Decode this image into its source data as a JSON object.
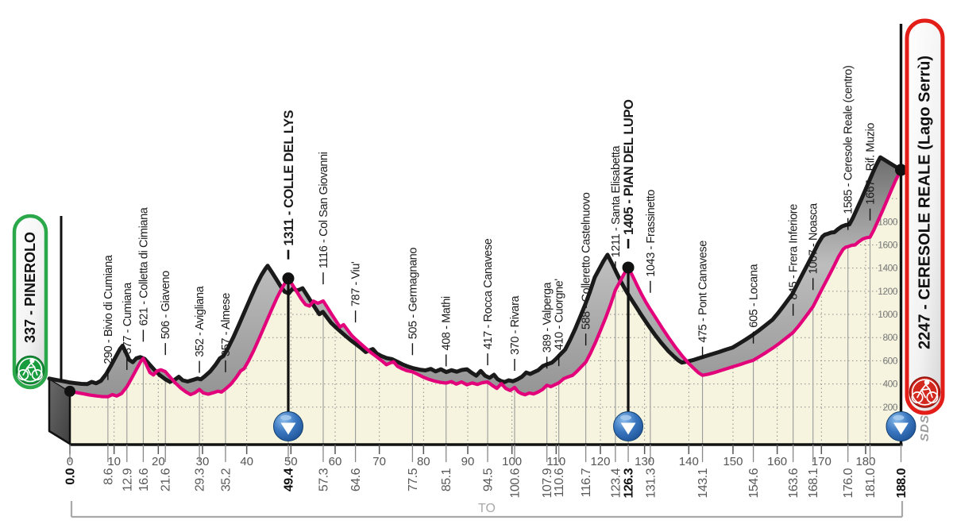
{
  "chart_data": {
    "type": "line",
    "subtype": "cycling-stage-elevation-profile",
    "start": {
      "label": "337 - PINEROLO",
      "km": "0.0",
      "elevation_m": 337
    },
    "finish": {
      "label": "2247 - CERESOLE REALE (Lago Serrù)",
      "km": "188.0",
      "elevation_m": 2247
    },
    "x_axis": {
      "unit": "km",
      "range": [
        0,
        188
      ],
      "tick_interval": 10,
      "tick_labels": [
        "0",
        "10",
        "20",
        "30",
        "40",
        "50",
        "60",
        "70",
        "80",
        "90",
        "100",
        "110",
        "120",
        "130",
        "140",
        "150",
        "160",
        "170",
        "180"
      ]
    },
    "y_axis": {
      "unit": "m",
      "gridline_interval": 200,
      "labels": [
        "200",
        "400",
        "600",
        "800",
        "1000",
        "1200",
        "1400",
        "1600",
        "1800"
      ]
    },
    "waypoints": [
      {
        "km": "0.0",
        "elevation_m": 337,
        "label": "337 - PINEROLO",
        "role": "start",
        "bold": true
      },
      {
        "km": "8.6",
        "elevation_m": 290,
        "label": "290 - Bivio di Cumiana",
        "role": "point",
        "bold": false
      },
      {
        "km": "12.9",
        "elevation_m": 377,
        "label": "377 - Cumiana",
        "role": "point",
        "bold": false
      },
      {
        "km": "16.6",
        "elevation_m": 621,
        "label": "621 - Colletta di Cimiana",
        "role": "point",
        "bold": false
      },
      {
        "km": "21.6",
        "elevation_m": 506,
        "label": "506 - Giaveno",
        "role": "point",
        "bold": false
      },
      {
        "km": "29.3",
        "elevation_m": 352,
        "label": "352 - Avigliana",
        "role": "point",
        "bold": false
      },
      {
        "km": "35.2",
        "elevation_m": 357,
        "label": "357 - Almese",
        "role": "point",
        "bold": false
      },
      {
        "km": "49.4",
        "elevation_m": 1311,
        "label": "1311 - COLLE DEL LYS",
        "role": "summit",
        "bold": true
      },
      {
        "km": "57.3",
        "elevation_m": 1116,
        "label": "1116 - Col San Giovanni",
        "role": "point",
        "bold": false
      },
      {
        "km": "64.6",
        "elevation_m": 787,
        "label": "787 - Viu'",
        "role": "point",
        "bold": false
      },
      {
        "km": "77.5",
        "elevation_m": 505,
        "label": "505 - Germagnano",
        "role": "point",
        "bold": false
      },
      {
        "km": "85.1",
        "elevation_m": 408,
        "label": "408 - Mathi",
        "role": "point",
        "bold": false
      },
      {
        "km": "94.5",
        "elevation_m": 417,
        "label": "417 - Rocca Canavese",
        "role": "point",
        "bold": false
      },
      {
        "km": "100.6",
        "elevation_m": 370,
        "label": "370 - Rivara",
        "role": "point",
        "bold": false
      },
      {
        "km": "107.9",
        "elevation_m": 389,
        "label": "389 - Valperga",
        "role": "point",
        "bold": false
      },
      {
        "km": "110.6",
        "elevation_m": 410,
        "label": "410 - Cuorgne'",
        "role": "point",
        "bold": false
      },
      {
        "km": "116.7",
        "elevation_m": 588,
        "label": "588 - Colleretto Castelnuovo",
        "role": "point",
        "bold": false
      },
      {
        "km": "123.4",
        "elevation_m": 1211,
        "label": "1211 - Santa Elisabetta",
        "role": "point",
        "bold": false
      },
      {
        "km": "126.3",
        "elevation_m": 1405,
        "label": "1405 - PIAN DEL LUPO",
        "role": "summit",
        "bold": true
      },
      {
        "km": "131.3",
        "elevation_m": 1043,
        "label": "1043 - Frassinetto",
        "role": "point",
        "bold": false
      },
      {
        "km": "143.1",
        "elevation_m": 475,
        "label": "475 - Pont Canavese",
        "role": "point",
        "bold": false
      },
      {
        "km": "154.6",
        "elevation_m": 605,
        "label": "605 - Locana",
        "role": "point",
        "bold": false
      },
      {
        "km": "163.6",
        "elevation_m": 845,
        "label": "845 - Frera Inferiore",
        "role": "point",
        "bold": false
      },
      {
        "km": "168.1",
        "elevation_m": 1067,
        "label": "1067 - Noasca",
        "role": "point",
        "bold": false
      },
      {
        "km": "176.0",
        "elevation_m": 1585,
        "label": "1585 - Ceresole Reale (centro)",
        "role": "point",
        "bold": false
      },
      {
        "km": "181.0",
        "elevation_m": 1667,
        "label": "1667 - Rif. Muzio",
        "role": "point",
        "bold": false
      },
      {
        "km": "188.0",
        "elevation_m": 2247,
        "label": "2247 - CERESOLE REALE (Lago Serrù)",
        "role": "finish",
        "bold": true
      }
    ],
    "gpm_marker_km": [
      49.4,
      126.3,
      188.0
    ],
    "profile": [
      [
        0,
        337
      ],
      [
        1.5,
        326
      ],
      [
        3,
        316
      ],
      [
        4.5,
        304
      ],
      [
        6,
        297
      ],
      [
        7.3,
        291
      ],
      [
        8.6,
        290
      ],
      [
        9.6,
        308
      ],
      [
        10.6,
        296
      ],
      [
        11.7,
        318
      ],
      [
        12.9,
        377
      ],
      [
        13.9,
        445
      ],
      [
        15,
        522
      ],
      [
        16,
        592
      ],
      [
        16.6,
        621
      ],
      [
        17.3,
        565
      ],
      [
        18.1,
        498
      ],
      [
        18.9,
        478
      ],
      [
        19.7,
        512
      ],
      [
        20.6,
        522
      ],
      [
        21.6,
        506
      ],
      [
        22.7,
        458
      ],
      [
        23.9,
        408
      ],
      [
        25.1,
        364
      ],
      [
        26.3,
        330
      ],
      [
        27.3,
        308
      ],
      [
        28.3,
        324
      ],
      [
        29.3,
        352
      ],
      [
        30.2,
        322
      ],
      [
        31.3,
        312
      ],
      [
        32.4,
        324
      ],
      [
        33.5,
        338
      ],
      [
        34.3,
        330
      ],
      [
        35.2,
        357
      ],
      [
        36.4,
        398
      ],
      [
        37.6,
        455
      ],
      [
        38.6,
        512
      ],
      [
        39.4,
        532
      ],
      [
        40.4,
        598
      ],
      [
        41.6,
        690
      ],
      [
        42.9,
        800
      ],
      [
        44.2,
        915
      ],
      [
        45.5,
        1030
      ],
      [
        46.8,
        1140
      ],
      [
        48,
        1230
      ],
      [
        48.9,
        1285
      ],
      [
        49.4,
        1311
      ],
      [
        50.4,
        1252
      ],
      [
        51.4,
        1192
      ],
      [
        52.4,
        1130
      ],
      [
        53.3,
        1085
      ],
      [
        54.2,
        1072
      ],
      [
        55.1,
        1115
      ],
      [
        56.1,
        1096
      ],
      [
        57.3,
        1116
      ],
      [
        58.3,
        1058
      ],
      [
        59.3,
        996
      ],
      [
        60.3,
        938
      ],
      [
        61.1,
        892
      ],
      [
        61.9,
        912
      ],
      [
        62.8,
        866
      ],
      [
        63.7,
        820
      ],
      [
        64.6,
        787
      ],
      [
        65.8,
        746
      ],
      [
        67,
        706
      ],
      [
        68.2,
        668
      ],
      [
        69.4,
        634
      ],
      [
        70.6,
        598
      ],
      [
        71.6,
        566
      ],
      [
        72.4,
        580
      ],
      [
        73.2,
        592
      ],
      [
        74.1,
        552
      ],
      [
        75.2,
        530
      ],
      [
        76.3,
        514
      ],
      [
        77.5,
        505
      ],
      [
        78.7,
        483
      ],
      [
        79.9,
        460
      ],
      [
        81.2,
        440
      ],
      [
        82.5,
        425
      ],
      [
        83.8,
        414
      ],
      [
        85.1,
        408
      ],
      [
        86.3,
        421
      ],
      [
        87.4,
        399
      ],
      [
        88.6,
        417
      ],
      [
        89.8,
        393
      ],
      [
        91,
        409
      ],
      [
        92.2,
        396
      ],
      [
        93.3,
        411
      ],
      [
        94.5,
        417
      ],
      [
        95.6,
        386
      ],
      [
        96.6,
        362
      ],
      [
        97.6,
        403
      ],
      [
        98.6,
        361
      ],
      [
        99.6,
        343
      ],
      [
        100.6,
        370
      ],
      [
        101.4,
        333
      ],
      [
        102.2,
        316
      ],
      [
        103,
        307
      ],
      [
        103.9,
        322
      ],
      [
        104.9,
        314
      ],
      [
        105.9,
        330
      ],
      [
        106.9,
        352
      ],
      [
        107.9,
        389
      ],
      [
        108.8,
        377
      ],
      [
        109.7,
        393
      ],
      [
        110.6,
        410
      ],
      [
        111.7,
        446
      ],
      [
        112.7,
        461
      ],
      [
        113.7,
        474
      ],
      [
        114.7,
        509
      ],
      [
        115.7,
        549
      ],
      [
        116.7,
        588
      ],
      [
        117.8,
        668
      ],
      [
        118.9,
        760
      ],
      [
        120.1,
        868
      ],
      [
        121.2,
        972
      ],
      [
        122.3,
        1085
      ],
      [
        123.4,
        1211
      ],
      [
        124.4,
        1282
      ],
      [
        125.4,
        1352
      ],
      [
        126.3,
        1405
      ],
      [
        127.3,
        1332
      ],
      [
        128.3,
        1252
      ],
      [
        129.3,
        1176
      ],
      [
        130.3,
        1106
      ],
      [
        131.3,
        1043
      ],
      [
        132.6,
        966
      ],
      [
        134,
        882
      ],
      [
        135.5,
        796
      ],
      [
        137,
        716
      ],
      [
        138.5,
        642
      ],
      [
        140,
        576
      ],
      [
        141.5,
        521
      ],
      [
        142.3,
        494
      ],
      [
        143.1,
        475
      ],
      [
        144.3,
        484
      ],
      [
        145.6,
        496
      ],
      [
        147,
        513
      ],
      [
        148.5,
        531
      ],
      [
        150,
        549
      ],
      [
        151.5,
        566
      ],
      [
        153,
        586
      ],
      [
        154.6,
        605
      ],
      [
        156,
        637
      ],
      [
        157.5,
        672
      ],
      [
        159,
        710
      ],
      [
        160.5,
        751
      ],
      [
        162,
        796
      ],
      [
        163.6,
        845
      ],
      [
        164.8,
        899
      ],
      [
        166,
        958
      ],
      [
        167,
        1010
      ],
      [
        168.1,
        1067
      ],
      [
        169.2,
        1150
      ],
      [
        170.4,
        1238
      ],
      [
        171.6,
        1326
      ],
      [
        172.8,
        1415
      ],
      [
        173.9,
        1500
      ],
      [
        174.9,
        1562
      ],
      [
        175.5,
        1580
      ],
      [
        176,
        1585
      ],
      [
        176.9,
        1597
      ],
      [
        177.6,
        1600
      ],
      [
        178.4,
        1626
      ],
      [
        179.3,
        1650
      ],
      [
        180.2,
        1662
      ],
      [
        181,
        1667
      ],
      [
        181.8,
        1724
      ],
      [
        182.7,
        1800
      ],
      [
        183.7,
        1884
      ],
      [
        184.7,
        1972
      ],
      [
        185.7,
        2062
      ],
      [
        186.7,
        2150
      ],
      [
        187.4,
        2204
      ],
      [
        188,
        2247
      ]
    ],
    "province_label": "TO",
    "credit": "SDS",
    "colors": {
      "profile_pink": "#E2017B",
      "profile_black": "#1A1A1A",
      "area_beige": "#F6F4DE",
      "grid_gray": "#8C8C8C",
      "start_green": "#2BA84A",
      "start_circle_green": "#189C3D",
      "finish_red": "#E31E18",
      "finish_circle_red": "#D3281E",
      "gpm_marker_blue": "#2E6CB6",
      "label_gray": "#5A5A5A"
    }
  }
}
